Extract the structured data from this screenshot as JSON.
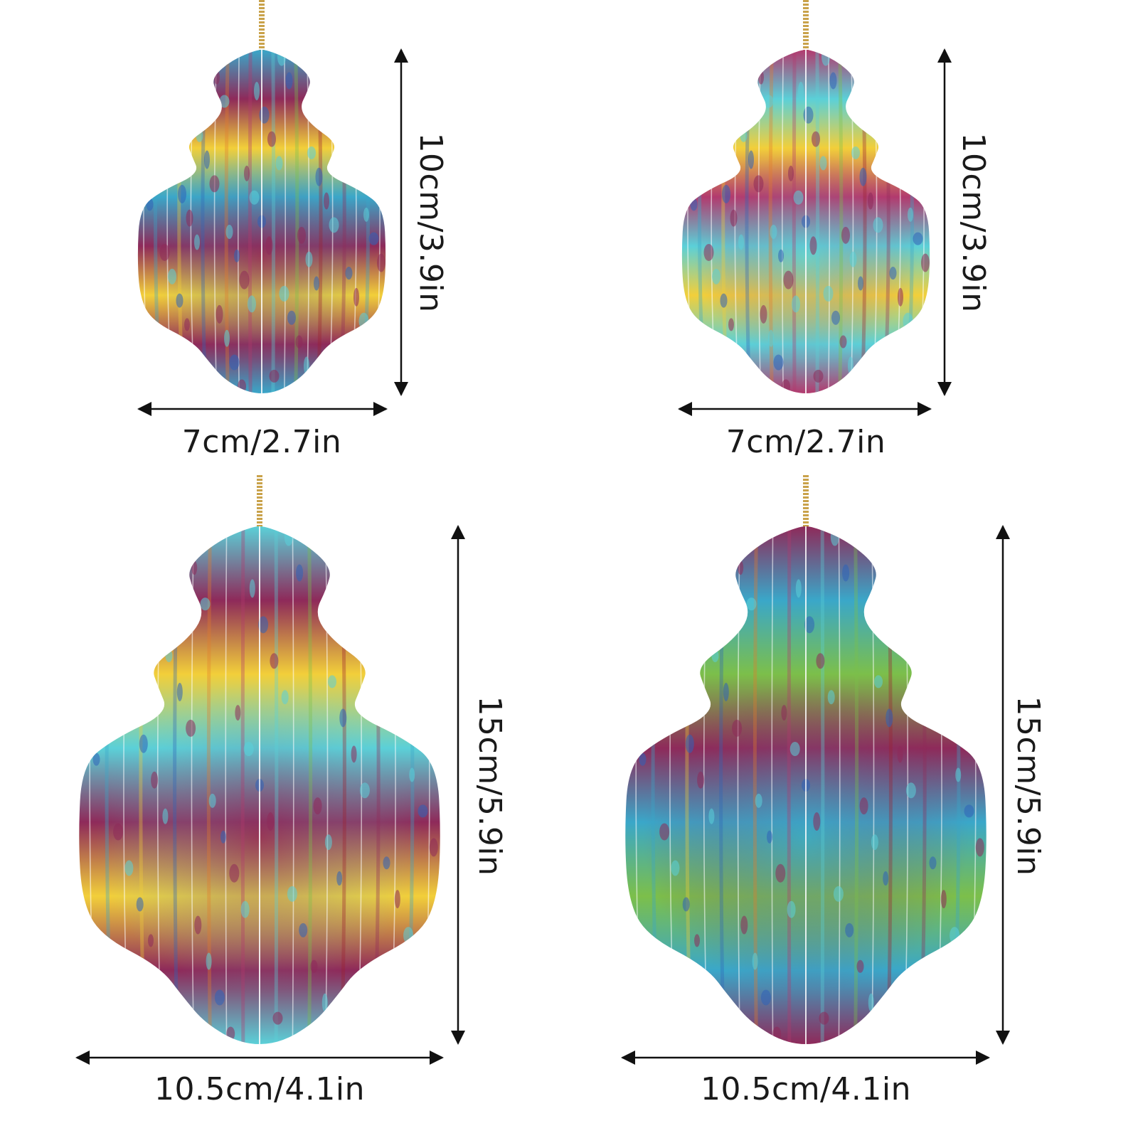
{
  "colors": {
    "background": "#ffffff",
    "arrow": "#111111",
    "text": "#1a1a1a",
    "string": "#c9a24a",
    "palette": [
      "#8e2a5a",
      "#b23a6e",
      "#3aa7c9",
      "#5bd0d8",
      "#f2cf3a",
      "#7cbf4a",
      "#2f63b8",
      "#9c1f2e",
      "#e37a2a"
    ]
  },
  "ornaments": [
    {
      "name": "ornament-small-1",
      "width_label": "7cm/2.7in",
      "height_label": "10cm/3.9in",
      "dominant": [
        "#3aa7c9",
        "#8e2a5a",
        "#f2cf3a"
      ]
    },
    {
      "name": "ornament-small-2",
      "width_label": "7cm/2.7in",
      "height_label": "10cm/3.9in",
      "dominant": [
        "#b23a6e",
        "#5bd0d8",
        "#f2cf3a"
      ]
    },
    {
      "name": "ornament-large-1",
      "width_label": "10.5cm/4.1in",
      "height_label": "15cm/5.9in",
      "dominant": [
        "#5bd0d8",
        "#8e2a5a",
        "#f2cf3a"
      ]
    },
    {
      "name": "ornament-large-2",
      "width_label": "10.5cm/4.1in",
      "height_label": "15cm/5.9in",
      "dominant": [
        "#8e2a5a",
        "#3aa7c9",
        "#7cbf4a"
      ]
    }
  ]
}
